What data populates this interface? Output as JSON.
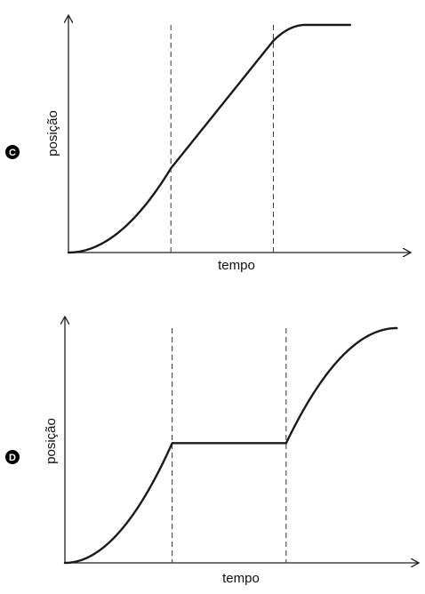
{
  "chart_data": [
    {
      "type": "line",
      "option": "C",
      "xlabel": "tempo",
      "ylabel": "posição",
      "xlim": [
        0,
        10
      ],
      "ylim": [
        0,
        10
      ],
      "grid": false,
      "vlines": [
        3.2,
        6.4
      ],
      "series": [
        {
          "segments": [
            {
              "shape": "parabola-up",
              "x": [
                0,
                3.2
              ],
              "y": [
                0,
                3.7
              ]
            },
            {
              "shape": "linear",
              "x": [
                3.2,
                6.4
              ],
              "y": [
                3.7,
                9.3
              ]
            },
            {
              "shape": "parabola-down",
              "x": [
                6.4,
                7.4
              ],
              "y": [
                9.3,
                10
              ]
            },
            {
              "shape": "constant",
              "x": [
                7.4,
                8.8
              ],
              "y": [
                10,
                10
              ]
            }
          ]
        }
      ]
    },
    {
      "type": "line",
      "option": "D",
      "xlabel": "tempo",
      "ylabel": "posição",
      "xlim": [
        0,
        10
      ],
      "ylim": [
        0,
        10
      ],
      "grid": false,
      "vlines": [
        3.2,
        6.6
      ],
      "series": [
        {
          "segments": [
            {
              "shape": "parabola-up",
              "x": [
                0,
                3.2
              ],
              "y": [
                0,
                5.1
              ]
            },
            {
              "shape": "constant",
              "x": [
                3.2,
                6.6
              ],
              "y": [
                5.1,
                5.1
              ]
            },
            {
              "shape": "parabola-down",
              "x": [
                6.6,
                9.9
              ],
              "y": [
                5.1,
                10
              ]
            }
          ]
        }
      ]
    }
  ]
}
